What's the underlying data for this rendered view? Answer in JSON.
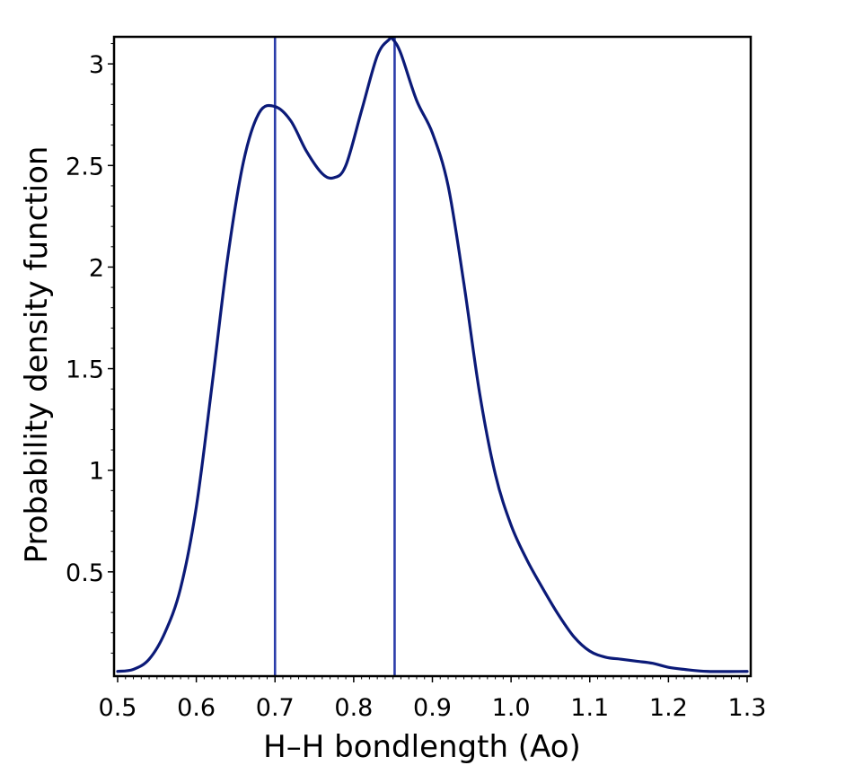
{
  "chart_data": {
    "type": "line",
    "title": "",
    "xlabel": "H–H bondlength (Ao)",
    "ylabel": "Probability density function",
    "xlim": [
      0.5,
      1.3
    ],
    "ylim": [
      0,
      3.12
    ],
    "xticks": [
      0.5,
      0.6,
      0.7,
      0.8,
      0.9,
      1.0,
      1.1,
      1.2,
      1.3
    ],
    "xtick_labels": [
      "0.5",
      "0.6",
      "0.7",
      "0.8",
      "0.9",
      "1.0",
      "1.1",
      "1.2",
      "1.3"
    ],
    "yticks": [
      0.5,
      1,
      1.5,
      2,
      2.5,
      3
    ],
    "ytick_labels": [
      "0.5",
      "1",
      "1.5",
      "2",
      "2.5",
      "3"
    ],
    "grid": false,
    "colors": {
      "curve": "#0b1a78",
      "vlines": "#2a3caa"
    },
    "series": [
      {
        "x": [
          0.5,
          0.52,
          0.54,
          0.56,
          0.58,
          0.6,
          0.62,
          0.64,
          0.66,
          0.68,
          0.7,
          0.72,
          0.74,
          0.76,
          0.775,
          0.79,
          0.81,
          0.83,
          0.845,
          0.85,
          0.86,
          0.88,
          0.9,
          0.92,
          0.94,
          0.96,
          0.98,
          1.0,
          1.02,
          1.04,
          1.06,
          1.08,
          1.1,
          1.12,
          1.14,
          1.16,
          1.18,
          1.2,
          1.22,
          1.25,
          1.3
        ],
        "y": [
          0.01,
          0.02,
          0.07,
          0.2,
          0.42,
          0.82,
          1.42,
          2.05,
          2.52,
          2.76,
          2.79,
          2.72,
          2.57,
          2.46,
          2.44,
          2.5,
          2.77,
          3.04,
          3.12,
          3.12,
          3.05,
          2.82,
          2.66,
          2.4,
          1.92,
          1.38,
          0.98,
          0.73,
          0.56,
          0.42,
          0.29,
          0.18,
          0.11,
          0.08,
          0.07,
          0.06,
          0.05,
          0.03,
          0.02,
          0.01,
          0.01
        ]
      }
    ],
    "vertical_lines": [
      0.7,
      0.852
    ]
  }
}
